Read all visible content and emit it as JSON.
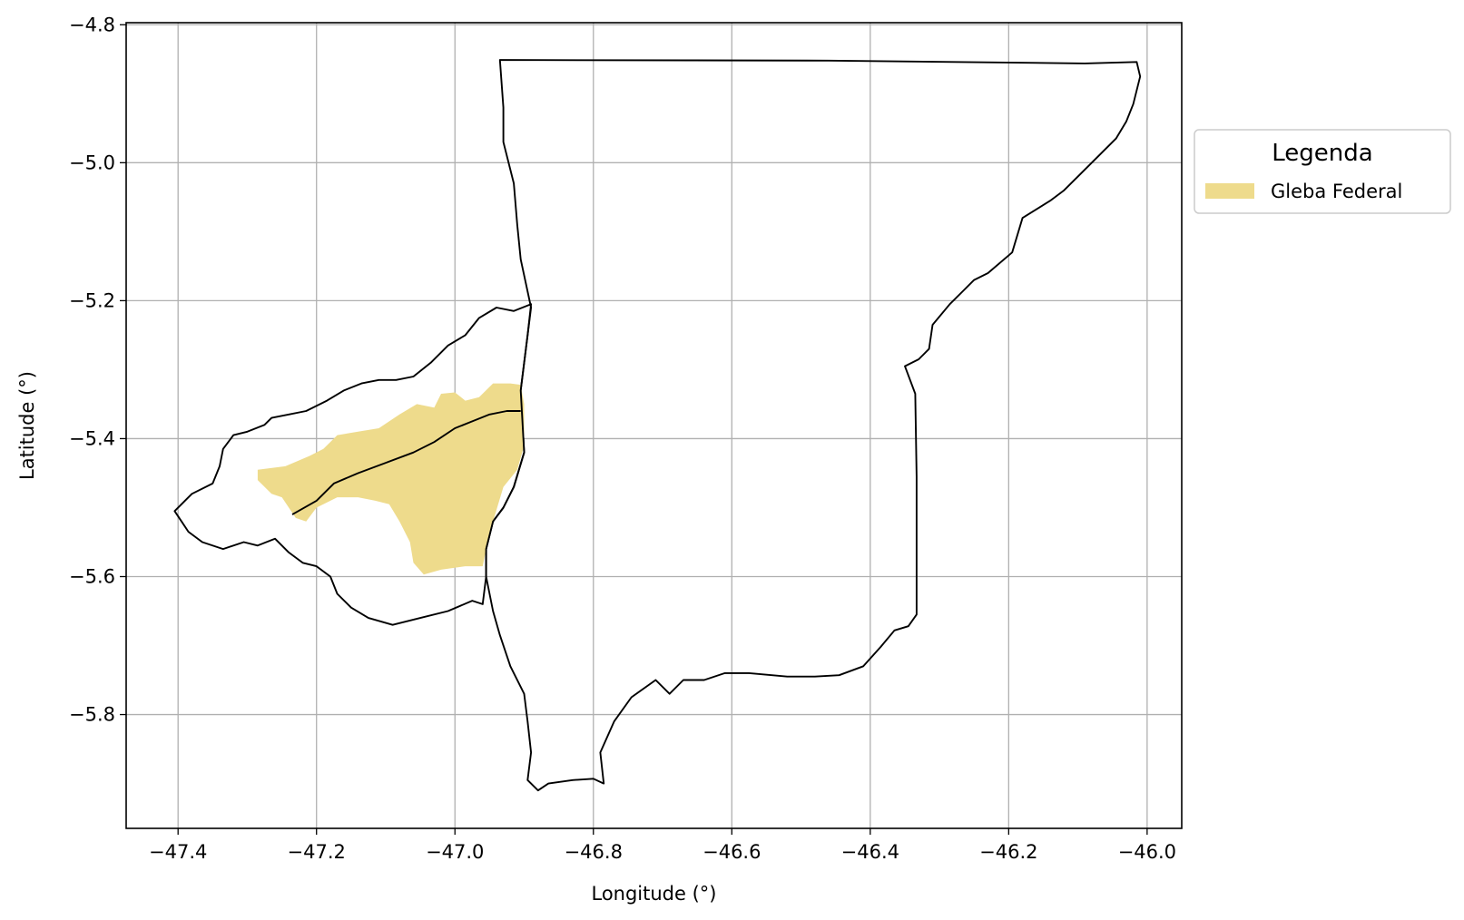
{
  "chart_data": {
    "type": "map",
    "xlabel": "Longitude (°)",
    "ylabel": "Latitude (°)",
    "xlim": [
      -47.475,
      -45.95
    ],
    "ylim": [
      -5.965,
      -4.797
    ],
    "x_ticks": [
      -47.4,
      -47.2,
      -47.0,
      -46.8,
      -46.6,
      -46.4,
      -46.2,
      -46.0
    ],
    "x_tick_labels": [
      "−47.4",
      "−47.2",
      "−47.0",
      "−46.8",
      "−46.6",
      "−46.4",
      "−46.2",
      "−46.0"
    ],
    "y_ticks": [
      -4.8,
      -5.0,
      -5.2,
      -5.4,
      -5.6,
      -5.8
    ],
    "y_tick_labels": [
      "−4.8",
      "−5.0",
      "−5.2",
      "−5.4",
      "−5.6",
      "−5.8"
    ],
    "grid": true,
    "legend": {
      "title": "Legenda",
      "placement": "outside-right-top",
      "entries": [
        {
          "label": "Gleba Federal",
          "color": "#eedb8c"
        }
      ]
    },
    "layers": [
      {
        "role": "boundary-east",
        "type": "polygon",
        "stroke": "#000000",
        "fill": "none",
        "coords": [
          [
            -46.935,
            -4.851
          ],
          [
            -46.46,
            -4.852
          ],
          [
            -46.09,
            -4.856
          ],
          [
            -46.015,
            -4.854
          ],
          [
            -46.01,
            -4.875
          ],
          [
            -46.02,
            -4.915
          ],
          [
            -46.03,
            -4.94
          ],
          [
            -46.045,
            -4.965
          ],
          [
            -46.08,
            -5.0
          ],
          [
            -46.12,
            -5.04
          ],
          [
            -46.14,
            -5.055
          ],
          [
            -46.18,
            -5.08
          ],
          [
            -46.195,
            -5.13
          ],
          [
            -46.23,
            -5.16
          ],
          [
            -46.25,
            -5.17
          ],
          [
            -46.265,
            -5.185
          ],
          [
            -46.285,
            -5.205
          ],
          [
            -46.31,
            -5.235
          ],
          [
            -46.315,
            -5.27
          ],
          [
            -46.33,
            -5.285
          ],
          [
            -46.35,
            -5.295
          ],
          [
            -46.335,
            -5.335
          ],
          [
            -46.333,
            -5.455
          ],
          [
            -46.333,
            -5.655
          ],
          [
            -46.345,
            -5.672
          ],
          [
            -46.365,
            -5.678
          ],
          [
            -46.385,
            -5.702
          ],
          [
            -46.41,
            -5.73
          ],
          [
            -46.445,
            -5.743
          ],
          [
            -46.48,
            -5.745
          ],
          [
            -46.52,
            -5.745
          ],
          [
            -46.575,
            -5.74
          ],
          [
            -46.61,
            -5.74
          ],
          [
            -46.64,
            -5.75
          ],
          [
            -46.67,
            -5.75
          ],
          [
            -46.69,
            -5.77
          ],
          [
            -46.71,
            -5.75
          ],
          [
            -46.745,
            -5.775
          ],
          [
            -46.77,
            -5.81
          ],
          [
            -46.79,
            -5.855
          ],
          [
            -46.785,
            -5.9
          ],
          [
            -46.8,
            -5.893
          ],
          [
            -46.83,
            -5.895
          ],
          [
            -46.865,
            -5.9
          ],
          [
            -46.88,
            -5.91
          ],
          [
            -46.895,
            -5.895
          ],
          [
            -46.89,
            -5.855
          ],
          [
            -46.895,
            -5.81
          ],
          [
            -46.9,
            -5.77
          ],
          [
            -46.92,
            -5.73
          ],
          [
            -46.935,
            -5.685
          ],
          [
            -46.945,
            -5.65
          ],
          [
            -46.955,
            -5.6
          ],
          [
            -46.955,
            -5.56
          ],
          [
            -46.945,
            -5.52
          ],
          [
            -46.93,
            -5.5
          ],
          [
            -46.915,
            -5.47
          ],
          [
            -46.9,
            -5.42
          ],
          [
            -46.905,
            -5.33
          ],
          [
            -46.895,
            -5.25
          ],
          [
            -46.89,
            -5.21
          ],
          [
            -46.905,
            -5.14
          ],
          [
            -46.91,
            -5.09
          ],
          [
            -46.915,
            -5.03
          ],
          [
            -46.93,
            -4.97
          ],
          [
            -46.93,
            -4.92
          ],
          [
            -46.935,
            -4.851
          ]
        ]
      },
      {
        "role": "gleba-federal",
        "type": "polygon",
        "stroke": "none",
        "fill": "#eedb8c",
        "coords": [
          [
            -47.285,
            -5.445
          ],
          [
            -47.245,
            -5.44
          ],
          [
            -47.21,
            -5.425
          ],
          [
            -47.19,
            -5.415
          ],
          [
            -47.17,
            -5.395
          ],
          [
            -47.14,
            -5.39
          ],
          [
            -47.11,
            -5.385
          ],
          [
            -47.08,
            -5.365
          ],
          [
            -47.055,
            -5.35
          ],
          [
            -47.03,
            -5.355
          ],
          [
            -47.02,
            -5.335
          ],
          [
            -47.0,
            -5.333
          ],
          [
            -46.985,
            -5.345
          ],
          [
            -46.965,
            -5.34
          ],
          [
            -46.945,
            -5.32
          ],
          [
            -46.92,
            -5.32
          ],
          [
            -46.905,
            -5.322
          ],
          [
            -46.9,
            -5.35
          ],
          [
            -46.9,
            -5.41
          ],
          [
            -46.91,
            -5.445
          ],
          [
            -46.93,
            -5.47
          ],
          [
            -46.945,
            -5.52
          ],
          [
            -46.955,
            -5.56
          ],
          [
            -46.96,
            -5.585
          ],
          [
            -46.985,
            -5.585
          ],
          [
            -47.02,
            -5.59
          ],
          [
            -47.045,
            -5.597
          ],
          [
            -47.06,
            -5.58
          ],
          [
            -47.065,
            -5.55
          ],
          [
            -47.08,
            -5.52
          ],
          [
            -47.095,
            -5.495
          ],
          [
            -47.115,
            -5.49
          ],
          [
            -47.14,
            -5.485
          ],
          [
            -47.17,
            -5.485
          ],
          [
            -47.19,
            -5.495
          ],
          [
            -47.2,
            -5.5
          ],
          [
            -47.215,
            -5.52
          ],
          [
            -47.23,
            -5.515
          ],
          [
            -47.25,
            -5.485
          ],
          [
            -47.265,
            -5.48
          ],
          [
            -47.285,
            -5.46
          ]
        ]
      },
      {
        "role": "boundary-west",
        "type": "polygon",
        "stroke": "#000000",
        "fill": "none",
        "coords": [
          [
            -46.89,
            -5.205
          ],
          [
            -46.915,
            -5.215
          ],
          [
            -46.94,
            -5.21
          ],
          [
            -46.965,
            -5.225
          ],
          [
            -46.985,
            -5.25
          ],
          [
            -47.01,
            -5.265
          ],
          [
            -47.035,
            -5.29
          ],
          [
            -47.06,
            -5.31
          ],
          [
            -47.085,
            -5.315
          ],
          [
            -47.11,
            -5.315
          ],
          [
            -47.135,
            -5.32
          ],
          [
            -47.16,
            -5.33
          ],
          [
            -47.185,
            -5.345
          ],
          [
            -47.215,
            -5.36
          ],
          [
            -47.24,
            -5.365
          ],
          [
            -47.265,
            -5.37
          ],
          [
            -47.275,
            -5.38
          ],
          [
            -47.3,
            -5.39
          ],
          [
            -47.32,
            -5.395
          ],
          [
            -47.335,
            -5.415
          ],
          [
            -47.34,
            -5.44
          ],
          [
            -47.35,
            -5.465
          ],
          [
            -47.38,
            -5.48
          ],
          [
            -47.405,
            -5.505
          ],
          [
            -47.395,
            -5.52
          ],
          [
            -47.385,
            -5.535
          ],
          [
            -47.365,
            -5.55
          ],
          [
            -47.335,
            -5.56
          ],
          [
            -47.305,
            -5.55
          ],
          [
            -47.285,
            -5.555
          ],
          [
            -47.26,
            -5.545
          ],
          [
            -47.24,
            -5.565
          ],
          [
            -47.22,
            -5.58
          ],
          [
            -47.2,
            -5.585
          ],
          [
            -47.18,
            -5.6
          ],
          [
            -47.17,
            -5.625
          ],
          [
            -47.15,
            -5.645
          ],
          [
            -47.125,
            -5.66
          ],
          [
            -47.09,
            -5.67
          ],
          [
            -47.05,
            -5.66
          ],
          [
            -47.01,
            -5.65
          ],
          [
            -46.975,
            -5.635
          ],
          [
            -46.96,
            -5.64
          ],
          [
            -46.955,
            -5.6
          ],
          [
            -46.955,
            -5.56
          ],
          [
            -46.945,
            -5.52
          ],
          [
            -46.93,
            -5.5
          ],
          [
            -46.915,
            -5.47
          ],
          [
            -46.9,
            -5.42
          ],
          [
            -46.905,
            -5.33
          ],
          [
            -46.895,
            -5.25
          ]
        ]
      },
      {
        "role": "inner-boundary",
        "type": "line",
        "stroke": "#000000",
        "fill": "none",
        "coords": [
          [
            -47.235,
            -5.51
          ],
          [
            -47.2,
            -5.49
          ],
          [
            -47.175,
            -5.465
          ],
          [
            -47.14,
            -5.45
          ],
          [
            -47.1,
            -5.435
          ],
          [
            -47.06,
            -5.42
          ],
          [
            -47.03,
            -5.405
          ],
          [
            -47.0,
            -5.385
          ],
          [
            -46.975,
            -5.375
          ],
          [
            -46.95,
            -5.365
          ],
          [
            -46.925,
            -5.36
          ],
          [
            -46.905,
            -5.36
          ]
        ]
      }
    ]
  }
}
